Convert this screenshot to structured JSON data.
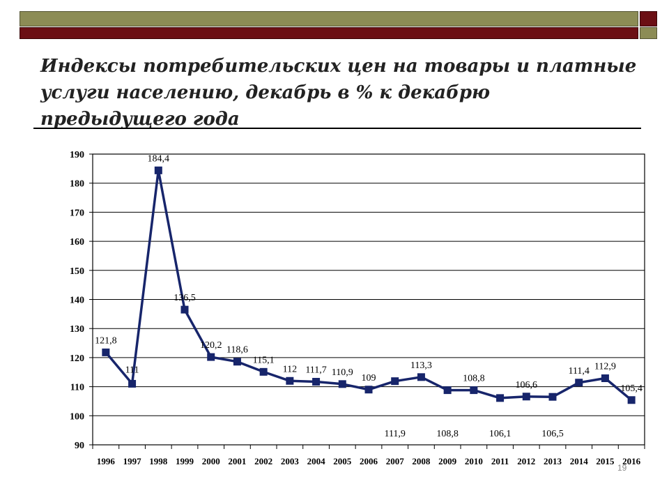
{
  "slide": {
    "title_line1": "Индексы потребительских цен на товары и платные",
    "title_line2": "услуги населению, декабрь в % к декабрю предыдущего года",
    "page_number": "19"
  },
  "colors": {
    "series": "#17256b",
    "band_olive": "#8c8c55",
    "band_maroon": "#6b0f14"
  },
  "chart_data": {
    "type": "line",
    "title": "",
    "xlabel": "",
    "ylabel": "",
    "categories": [
      "1996",
      "1997",
      "1998",
      "1999",
      "2000",
      "2001",
      "2002",
      "2003",
      "2004",
      "2005",
      "2006",
      "2007",
      "2008",
      "2009",
      "2010",
      "2011",
      "2012",
      "2013",
      "2014",
      "2015",
      "2016"
    ],
    "ylim": [
      90,
      190
    ],
    "yticks": [
      "90",
      "100",
      "110",
      "120",
      "130",
      "140",
      "150",
      "160",
      "170",
      "180",
      "190"
    ],
    "grid": true,
    "legend": "none",
    "series": [
      {
        "values": [
          121.8,
          111,
          184.4,
          136.5,
          120.2,
          118.6,
          115.1,
          112,
          111.7,
          110.9,
          109,
          111.9,
          113.3,
          108.8,
          108.8,
          106.1,
          106.6,
          106.5,
          111.4,
          112.9,
          105.4
        ],
        "labels": [
          "121,8",
          "111",
          "184,4",
          "136,5",
          "120,2",
          "118,6",
          "115,1",
          "112",
          "111,7",
          "110,9",
          "109",
          "111,9",
          "113,3",
          "108,8",
          "108,8",
          "106,1",
          "106,6",
          "106,5",
          "111,4",
          "112,9",
          "105,4"
        ],
        "label_position": [
          "above",
          "below",
          "above",
          "above",
          "above",
          "above",
          "above",
          "above",
          "above",
          "above",
          "above",
          "bottom",
          "above",
          "bottom",
          "above",
          "bottom",
          "above",
          "bottom",
          "above",
          "above",
          "above"
        ]
      }
    ]
  }
}
